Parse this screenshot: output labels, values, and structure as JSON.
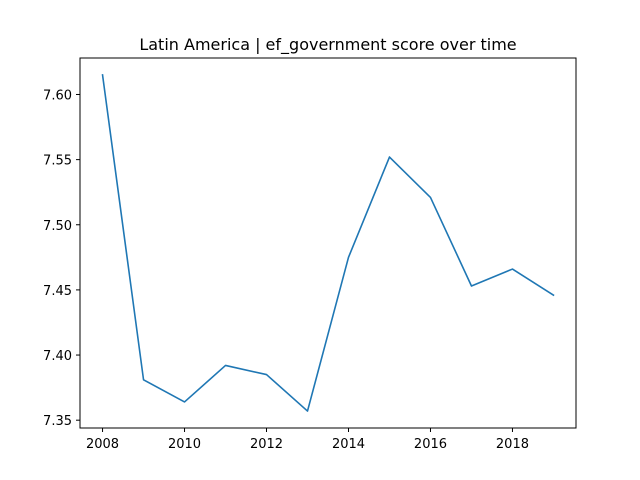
{
  "chart_data": {
    "type": "line",
    "title": "Latin America | ef_government score over time",
    "xlabel": "",
    "ylabel": "",
    "xlim": [
      2007.45,
      2019.55
    ],
    "ylim": [
      7.344,
      7.628
    ],
    "x_ticks": [
      2008,
      2010,
      2012,
      2014,
      2016,
      2018
    ],
    "y_ticks": [
      7.35,
      7.4,
      7.45,
      7.5,
      7.55,
      7.6
    ],
    "y_tick_labels": [
      "7.35",
      "7.40",
      "7.45",
      "7.50",
      "7.55",
      "7.60"
    ],
    "grid": false,
    "series": [
      {
        "color": "#1f77b4",
        "x": [
          2008,
          2009,
          2010,
          2011,
          2012,
          2013,
          2014,
          2015,
          2016,
          2017,
          2018,
          2019
        ],
        "values": [
          7.615,
          7.381,
          7.364,
          7.392,
          7.385,
          7.357,
          7.475,
          7.552,
          7.521,
          7.453,
          7.466,
          7.446
        ]
      }
    ]
  }
}
